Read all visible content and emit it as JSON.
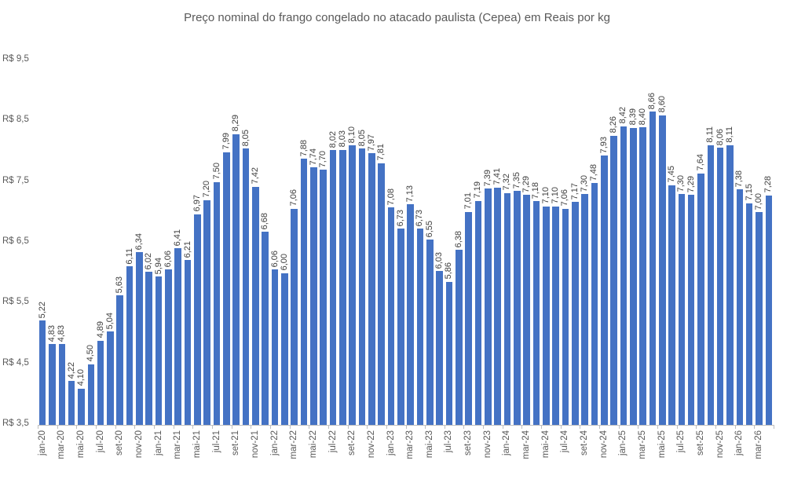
{
  "chart_data": {
    "type": "bar",
    "title": "Preço nominal do frango congelado no atacado paulista (Cepea) em Reais por kg",
    "xlabel": "",
    "ylabel": "",
    "ylim": [
      3.5,
      9.5
    ],
    "ytick_step": 1.0,
    "ytick_labels": [
      "R$ 3,5",
      "R$ 4,5",
      "R$ 5,5",
      "R$ 6,5",
      "R$ 7,5",
      "R$ 8,5",
      "R$ 9,5"
    ],
    "grid": false,
    "legend": false,
    "x_label_interval": 2,
    "decimal_separator": ",",
    "bar_color": "#4472C4",
    "value_label_color": "#404040",
    "axis_label_color": "#595959",
    "title_color": "#595959",
    "axis_line_color": "#BFBFBF",
    "categories": [
      "jan-20",
      "fev-20",
      "mar-20",
      "abr-20",
      "mai-20",
      "jun-20",
      "jul-20",
      "ago-20",
      "set-20",
      "out-20",
      "nov-20",
      "dez-20",
      "jan-21",
      "fev-21",
      "mar-21",
      "abr-21",
      "mai-21",
      "jun-21",
      "jul-21",
      "ago-21",
      "set-21",
      "out-21",
      "nov-21",
      "dez-21",
      "jan-22",
      "fev-22",
      "mar-22",
      "abr-22",
      "mai-22",
      "jun-22",
      "jul-22",
      "ago-22",
      "set-22",
      "out-22",
      "nov-22",
      "dez-22",
      "jan-23",
      "fev-23",
      "mar-23",
      "abr-23",
      "mai-23",
      "jun-23",
      "jul-23",
      "ago-23",
      "set-23",
      "out-23",
      "nov-23",
      "dez-23",
      "jan-24",
      "fev-24",
      "mar-24",
      "abr-24",
      "mai-24",
      "jun-24",
      "jul-24",
      "ago-24",
      "set-24",
      "out-24",
      "nov-24",
      "dez-24",
      "jan-25",
      "fev-25",
      "mar-25",
      "abr-25",
      "mai-25",
      "jun-25",
      "jul-25",
      "ago-25",
      "set-25",
      "out-25",
      "nov-25",
      "dez-25",
      "jan-26",
      "fev-26",
      "mar-26",
      "abr-26"
    ],
    "values": [
      5.22,
      4.83,
      4.83,
      4.22,
      4.1,
      4.5,
      4.89,
      5.04,
      5.63,
      6.11,
      6.34,
      6.02,
      5.94,
      6.06,
      6.41,
      6.21,
      6.97,
      7.2,
      7.5,
      7.99,
      8.29,
      8.05,
      7.42,
      6.68,
      6.06,
      6.0,
      7.06,
      7.88,
      7.74,
      7.7,
      8.02,
      8.03,
      8.1,
      8.05,
      7.97,
      7.81,
      7.08,
      6.73,
      7.13,
      6.73,
      6.55,
      6.03,
      5.86,
      6.38,
      7.01,
      7.19,
      7.39,
      7.41,
      7.32,
      7.35,
      7.29,
      7.18,
      7.1,
      7.1,
      7.06,
      7.17,
      7.3,
      7.48,
      7.93,
      8.26,
      8.42,
      8.39,
      8.4,
      8.66,
      8.6,
      7.45,
      7.3,
      7.29,
      7.64,
      8.11,
      8.06,
      8.11,
      7.38,
      7.15,
      7.0,
      7.28
    ]
  }
}
